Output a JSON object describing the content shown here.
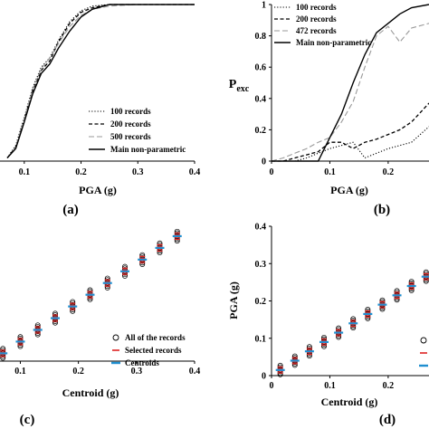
{
  "chart_data": [
    {
      "id": "a",
      "type": "line",
      "panel_label": "(a)",
      "xlabel": "PGA (g)",
      "x_ticks": [
        "0.1",
        "0.2",
        "0.3",
        "0.4"
      ],
      "xlim": [
        0.07,
        0.4
      ],
      "ylim": [
        0,
        1
      ],
      "legend_position": "bottom-right",
      "series": [
        {
          "name": "100 records",
          "style": "dotted",
          "color": "#000000",
          "x": [
            0.07,
            0.085,
            0.1,
            0.115,
            0.13,
            0.145,
            0.16,
            0.18,
            0.2,
            0.22,
            0.25,
            0.3,
            0.4
          ],
          "y": [
            0.02,
            0.1,
            0.28,
            0.47,
            0.6,
            0.66,
            0.77,
            0.89,
            0.96,
            0.99,
            1.0,
            1.0,
            1.0
          ]
        },
        {
          "name": "200 records",
          "style": "dashed",
          "color": "#000000",
          "x": [
            0.07,
            0.085,
            0.1,
            0.115,
            0.13,
            0.145,
            0.16,
            0.18,
            0.2,
            0.22,
            0.25,
            0.3,
            0.4
          ],
          "y": [
            0.02,
            0.09,
            0.26,
            0.45,
            0.58,
            0.64,
            0.76,
            0.88,
            0.95,
            0.98,
            1.0,
            1.0,
            1.0
          ]
        },
        {
          "name": "500 records",
          "style": "longdash",
          "color": "#999999",
          "x": [
            0.07,
            0.085,
            0.1,
            0.115,
            0.13,
            0.145,
            0.16,
            0.18,
            0.2,
            0.22,
            0.25,
            0.3,
            0.4
          ],
          "y": [
            0.02,
            0.09,
            0.27,
            0.46,
            0.59,
            0.66,
            0.75,
            0.86,
            0.93,
            0.97,
            0.99,
            1.0,
            1.0
          ]
        },
        {
          "name": "Main non-parametric",
          "style": "solid",
          "color": "#000000",
          "x": [
            0.07,
            0.085,
            0.1,
            0.115,
            0.13,
            0.145,
            0.16,
            0.18,
            0.2,
            0.22,
            0.25,
            0.3,
            0.4
          ],
          "y": [
            0.02,
            0.08,
            0.25,
            0.43,
            0.56,
            0.62,
            0.72,
            0.83,
            0.92,
            0.97,
            1.0,
            1.0,
            1.0
          ]
        }
      ]
    },
    {
      "id": "b",
      "type": "line",
      "panel_label": "(b)",
      "xlabel": "PGA (g)",
      "ylabel": "Pexc",
      "ylabel_main": "P",
      "ylabel_sub": "exc",
      "x_ticks": [
        "0",
        "0.1",
        "0.2"
      ],
      "y_ticks": [
        "0",
        "0.2",
        "0.4",
        "0.6",
        "0.8",
        "1"
      ],
      "xlim": [
        0,
        0.27
      ],
      "ylim": [
        0,
        1
      ],
      "legend_position": "top-left",
      "series": [
        {
          "name": "100 records",
          "style": "dotted",
          "color": "#000000",
          "x": [
            0,
            0.02,
            0.04,
            0.06,
            0.08,
            0.1,
            0.12,
            0.14,
            0.16,
            0.18,
            0.2,
            0.22,
            0.24,
            0.27
          ],
          "y": [
            0,
            0,
            0,
            0.02,
            0.05,
            0.08,
            0.1,
            0.12,
            0.02,
            0.05,
            0.08,
            0.1,
            0.12,
            0.22
          ]
        },
        {
          "name": "200 records",
          "style": "dashed",
          "color": "#000000",
          "x": [
            0,
            0.02,
            0.04,
            0.06,
            0.08,
            0.1,
            0.12,
            0.14,
            0.16,
            0.18,
            0.2,
            0.22,
            0.24,
            0.27
          ],
          "y": [
            0,
            0,
            0.02,
            0.04,
            0.06,
            0.12,
            0.12,
            0.08,
            0.12,
            0.14,
            0.17,
            0.2,
            0.25,
            0.37
          ]
        },
        {
          "name": "472 records",
          "style": "longdash",
          "color": "#999999",
          "x": [
            0,
            0.02,
            0.04,
            0.06,
            0.08,
            0.1,
            0.12,
            0.14,
            0.16,
            0.18,
            0.2,
            0.22,
            0.24,
            0.27
          ],
          "y": [
            0,
            0.02,
            0.05,
            0.08,
            0.12,
            0.15,
            0.25,
            0.38,
            0.6,
            0.8,
            0.86,
            0.76,
            0.85,
            0.88
          ]
        },
        {
          "name": "Main non-parametric",
          "style": "solid",
          "color": "#000000",
          "x": [
            0,
            0.02,
            0.04,
            0.06,
            0.08,
            0.1,
            0.12,
            0.14,
            0.16,
            0.18,
            0.2,
            0.22,
            0.24,
            0.27
          ],
          "y": [
            0,
            0,
            0,
            0,
            0,
            0.15,
            0.3,
            0.5,
            0.68,
            0.82,
            0.88,
            0.94,
            0.98,
            1.0
          ]
        }
      ]
    },
    {
      "id": "c",
      "type": "scatter",
      "panel_label": "(c)",
      "xlabel": "Centroid (g)",
      "x_ticks": [
        "0.1",
        "0.2",
        "0.3",
        "0.4"
      ],
      "xlim": [
        0.065,
        0.4
      ],
      "ylim": [
        0.05,
        0.4
      ],
      "legend_position": "bottom-right",
      "centroids": [
        0.07,
        0.1,
        0.13,
        0.16,
        0.19,
        0.22,
        0.25,
        0.28,
        0.31,
        0.34,
        0.37
      ],
      "series": [
        {
          "name": "All of the records",
          "marker": "open-circle",
          "color": "#000000"
        },
        {
          "name": "Selected records",
          "marker": "dash",
          "color": "#dd2222"
        },
        {
          "name": "Centroids",
          "marker": "bar",
          "color": "#1f8fd0"
        }
      ]
    },
    {
      "id": "d",
      "type": "scatter",
      "panel_label": "(d)",
      "xlabel": "Centroid (g)",
      "ylabel": "PGA (g)",
      "x_ticks": [
        "0",
        "0.1",
        "0.2"
      ],
      "y_ticks": [
        "0",
        "0.1",
        "0.2",
        "0.3",
        "0.4"
      ],
      "xlim": [
        0,
        0.27
      ],
      "ylim": [
        0,
        0.4
      ],
      "legend_position": "bottom-right",
      "centroids": [
        0.015,
        0.04,
        0.065,
        0.09,
        0.115,
        0.14,
        0.165,
        0.19,
        0.215,
        0.24,
        0.265
      ],
      "series": [
        {
          "name": "",
          "marker": "open-circle",
          "color": "#000000"
        },
        {
          "name": "",
          "marker": "dash",
          "color": "#dd2222"
        },
        {
          "name": "",
          "marker": "bar",
          "color": "#1f8fd0"
        }
      ]
    }
  ]
}
